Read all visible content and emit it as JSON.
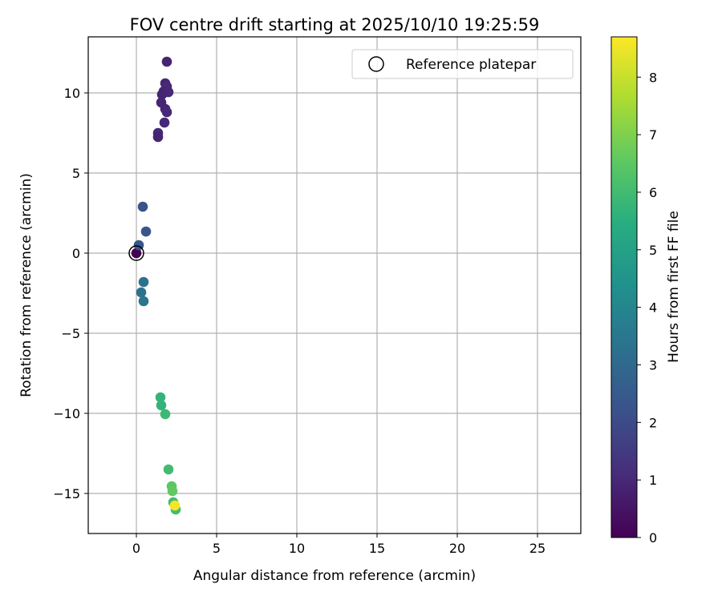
{
  "chart_data": {
    "type": "scatter",
    "title": "FOV centre drift starting at 2025/10/10 19:25:59",
    "xlabel": "Angular distance from reference (arcmin)",
    "ylabel": "Rotation from reference (arcmin)",
    "xlim": [
      -3,
      27.7
    ],
    "ylim": [
      -17.5,
      13.5
    ],
    "xticks": [
      0,
      5,
      10,
      15,
      20,
      25
    ],
    "yticks": [
      -15,
      -10,
      -5,
      0,
      5,
      10
    ],
    "xtick_labels": [
      "0",
      "5",
      "10",
      "15",
      "20",
      "25"
    ],
    "ytick_labels": [
      "−15",
      "−10",
      "−5",
      "0",
      "5",
      "10"
    ],
    "grid": true,
    "legend": {
      "position": "top-right",
      "entries": [
        "Reference platepar"
      ]
    },
    "colorbar": {
      "label": "Hours from first FF file",
      "colormap": "viridis",
      "range": [
        0,
        8.7
      ],
      "ticks": [
        0,
        1,
        2,
        3,
        4,
        5,
        6,
        7,
        8
      ],
      "tick_labels": [
        "0",
        "1",
        "2",
        "3",
        "4",
        "5",
        "6",
        "7",
        "8"
      ]
    },
    "reference_point": {
      "x": 0,
      "y": 0
    },
    "points": [
      {
        "x": 0.0,
        "y": 0.0,
        "hours": 0.0
      },
      {
        "x": 1.9,
        "y": 11.95,
        "hours": 0.9
      },
      {
        "x": 1.8,
        "y": 10.6,
        "hours": 0.9
      },
      {
        "x": 1.9,
        "y": 10.4,
        "hours": 1.0
      },
      {
        "x": 1.7,
        "y": 10.1,
        "hours": 0.9
      },
      {
        "x": 2.0,
        "y": 10.05,
        "hours": 1.0
      },
      {
        "x": 1.6,
        "y": 9.9,
        "hours": 0.9
      },
      {
        "x": 1.55,
        "y": 9.4,
        "hours": 0.9
      },
      {
        "x": 1.8,
        "y": 9.0,
        "hours": 0.9
      },
      {
        "x": 1.9,
        "y": 8.8,
        "hours": 1.0
      },
      {
        "x": 1.75,
        "y": 8.15,
        "hours": 1.0
      },
      {
        "x": 1.35,
        "y": 7.5,
        "hours": 1.0
      },
      {
        "x": 1.35,
        "y": 7.25,
        "hours": 0.9
      },
      {
        "x": 0.4,
        "y": 2.9,
        "hours": 2.2
      },
      {
        "x": 0.6,
        "y": 1.35,
        "hours": 2.3
      },
      {
        "x": 0.15,
        "y": 0.5,
        "hours": 2.4
      },
      {
        "x": 0.45,
        "y": -1.8,
        "hours": 3.3
      },
      {
        "x": 0.3,
        "y": -2.45,
        "hours": 3.3
      },
      {
        "x": 0.45,
        "y": -3.0,
        "hours": 3.4
      },
      {
        "x": 1.5,
        "y": -9.0,
        "hours": 5.7
      },
      {
        "x": 1.55,
        "y": -9.5,
        "hours": 5.7
      },
      {
        "x": 1.8,
        "y": -10.05,
        "hours": 5.9
      },
      {
        "x": 2.0,
        "y": -13.5,
        "hours": 6.0
      },
      {
        "x": 2.2,
        "y": -14.55,
        "hours": 6.5
      },
      {
        "x": 2.25,
        "y": -14.85,
        "hours": 6.6
      },
      {
        "x": 2.3,
        "y": -15.55,
        "hours": 6.0
      },
      {
        "x": 2.45,
        "y": -16.0,
        "hours": 6.0
      },
      {
        "x": 2.4,
        "y": -15.75,
        "hours": 8.6
      }
    ]
  }
}
